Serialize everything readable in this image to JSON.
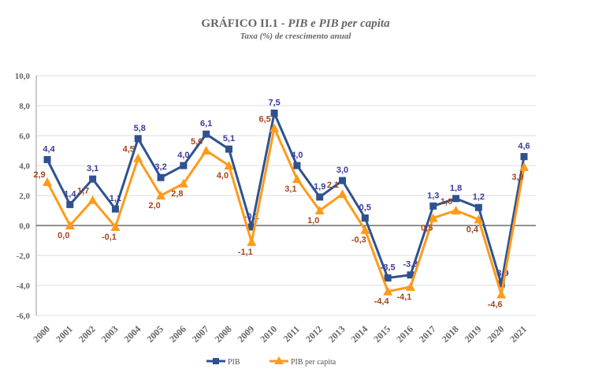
{
  "chart_data": {
    "type": "line",
    "title": "GRÁFICO II.1 - ",
    "title_italic": "PIB e PIB per capita",
    "subtitle": "Taxa (%) de crescimento anual",
    "categories": [
      "2000",
      "2001",
      "2002",
      "2003",
      "2004",
      "2005",
      "2006",
      "2007",
      "2008",
      "2009",
      "2010",
      "2011",
      "2012",
      "2013",
      "2014",
      "2015",
      "2016",
      "2017",
      "2018",
      "2019",
      "2020",
      "2021"
    ],
    "ylim": [
      -6,
      10
    ],
    "yticks": [
      "-6,0",
      "-4,0",
      "-2,0",
      "0,0",
      "2,0",
      "4,0",
      "6,0",
      "8,0",
      "10,0"
    ],
    "grid": true,
    "legend": "bottom",
    "series": [
      {
        "name": "PIB",
        "marker": "square",
        "color": "#2F528F",
        "label_color": "#3A3A9E",
        "values": [
          4.4,
          1.4,
          3.1,
          1.1,
          5.8,
          3.2,
          4.0,
          6.1,
          5.1,
          -0.1,
          7.5,
          4.0,
          1.9,
          3.0,
          0.5,
          -3.5,
          -3.3,
          1.3,
          1.8,
          1.2,
          -3.9,
          4.6
        ]
      },
      {
        "name": "PIB per capita",
        "marker": "triangle",
        "color": "#FF9A1A",
        "label_color": "#A3461F",
        "values": [
          2.9,
          0.0,
          1.7,
          -0.1,
          4.5,
          2.0,
          2.8,
          5.0,
          4.0,
          -1.1,
          6.5,
          3.1,
          1.0,
          2.1,
          -0.3,
          -4.4,
          -4.1,
          0.5,
          1.0,
          0.4,
          -4.6,
          3.9
        ]
      }
    ]
  }
}
